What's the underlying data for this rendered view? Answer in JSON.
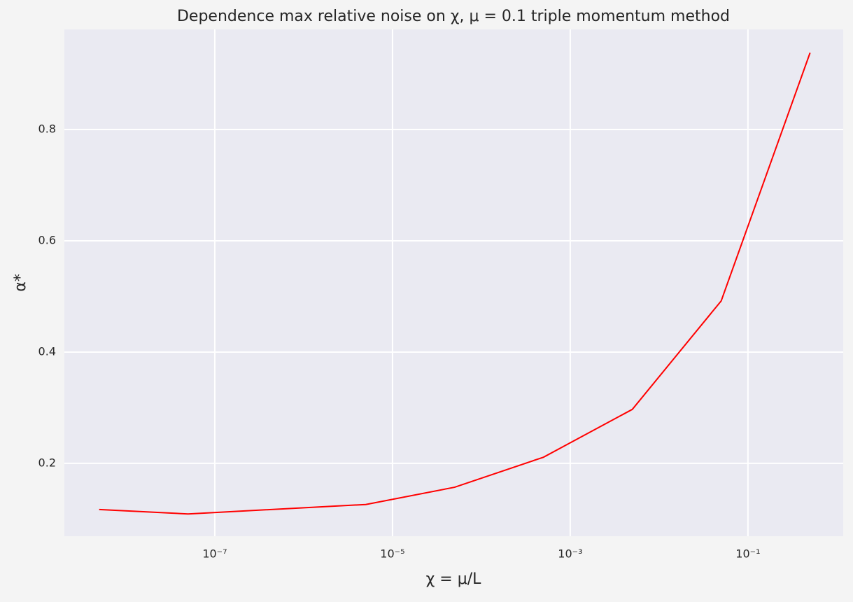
{
  "chart_data": {
    "type": "line",
    "title": "Dependence max relative noise on χ, μ = 0.1  triple momentum method",
    "xlabel": "χ = μ/L",
    "ylabel": "α*",
    "xscale": "log",
    "grid": true,
    "background": "#eaeaf2",
    "x": [
      5e-09,
      5e-08,
      5e-06,
      5e-05,
      0.0005,
      0.005,
      0.05,
      0.5
    ],
    "series": [
      {
        "name": "α*",
        "color": "#ff0000",
        "values": [
          0.117,
          0.109,
          0.126,
          0.157,
          0.211,
          0.297,
          0.492,
          0.938
        ]
      }
    ],
    "xlim": [
      2.03e-09,
      1.18
    ],
    "ylim": [
      0.069,
      0.98
    ],
    "xticks": [
      {
        "value": 1e-07,
        "label": "10⁻⁷"
      },
      {
        "value": 1e-05,
        "label": "10⁻⁵"
      },
      {
        "value": 0.001,
        "label": "10⁻³"
      },
      {
        "value": 0.1,
        "label": "10⁻¹"
      }
    ],
    "yticks": [
      0.2,
      0.4,
      0.6,
      0.8
    ]
  }
}
